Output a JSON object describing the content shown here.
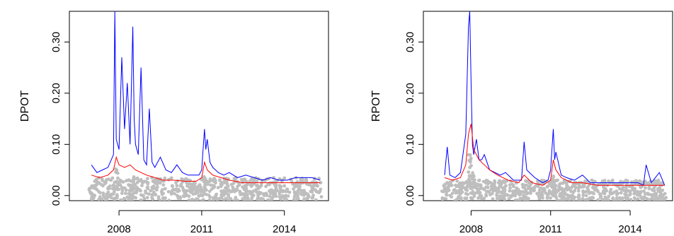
{
  "chart_data": [
    {
      "type": "line",
      "title": "",
      "xlabel": "",
      "ylabel": "DPOT",
      "x_tick_labels": [
        "2008",
        "2011",
        "2014"
      ],
      "x_ticks": [
        2008,
        2011,
        2014
      ],
      "xlim": [
        2006.2,
        2015.6
      ],
      "y_tick_labels": [
        "0.00",
        "0.10",
        "0.20",
        "0.30"
      ],
      "y_ticks": [
        0.0,
        0.1,
        0.2,
        0.3
      ],
      "ylim": [
        -0.01,
        0.36
      ],
      "grid": false,
      "series": [
        {
          "color": "#0000ff",
          "x": [
            2007.0,
            2007.2,
            2007.4,
            2007.6,
            2007.8,
            2007.85,
            2007.9,
            2008.0,
            2008.1,
            2008.2,
            2008.3,
            2008.4,
            2008.5,
            2008.55,
            2008.6,
            2008.7,
            2008.8,
            2008.9,
            2009.0,
            2009.1,
            2009.2,
            2009.3,
            2009.5,
            2009.7,
            2009.9,
            2010.1,
            2010.3,
            2010.5,
            2010.7,
            2010.9,
            2011.0,
            2011.1,
            2011.15,
            2011.2,
            2011.3,
            2011.4,
            2011.5,
            2011.6,
            2011.8,
            2012.0,
            2012.3,
            2012.6,
            2012.9,
            2013.2,
            2013.5,
            2013.8,
            2014.1,
            2014.4,
            2014.7,
            2015.0,
            2015.3
          ],
          "y": [
            0.06,
            0.045,
            0.05,
            0.055,
            0.08,
            0.36,
            0.11,
            0.09,
            0.27,
            0.13,
            0.22,
            0.1,
            0.33,
            0.15,
            0.1,
            0.08,
            0.25,
            0.07,
            0.06,
            0.17,
            0.065,
            0.055,
            0.075,
            0.05,
            0.045,
            0.06,
            0.045,
            0.04,
            0.04,
            0.04,
            0.05,
            0.13,
            0.09,
            0.11,
            0.065,
            0.055,
            0.05,
            0.045,
            0.04,
            0.045,
            0.035,
            0.04,
            0.035,
            0.03,
            0.035,
            0.03,
            0.03,
            0.035,
            0.035,
            0.035,
            0.03
          ]
        },
        {
          "color": "#ff0000",
          "x": [
            2007.0,
            2007.3,
            2007.6,
            2007.8,
            2007.9,
            2008.0,
            2008.2,
            2008.4,
            2008.6,
            2008.8,
            2009.0,
            2009.3,
            2009.6,
            2010.0,
            2010.4,
            2010.8,
            2011.0,
            2011.1,
            2011.2,
            2011.4,
            2011.7,
            2012.0,
            2012.5,
            2013.0,
            2013.5,
            2014.0,
            2014.5,
            2015.0,
            2015.3
          ],
          "y": [
            0.04,
            0.035,
            0.04,
            0.05,
            0.075,
            0.06,
            0.055,
            0.06,
            0.05,
            0.045,
            0.04,
            0.035,
            0.03,
            0.03,
            0.028,
            0.028,
            0.035,
            0.065,
            0.05,
            0.04,
            0.035,
            0.03,
            0.025,
            0.025,
            0.025,
            0.025,
            0.025,
            0.025,
            0.025
          ]
        }
      ],
      "scatter_series": [
        {
          "color": "#bebebe",
          "x_range": [
            2006.9,
            2015.35
          ],
          "y_range": [
            -0.01,
            0.035
          ],
          "spikes": [
            [
              2007.9,
              0.06
            ],
            [
              2008.5,
              0.04
            ],
            [
              2011.1,
              0.04
            ]
          ]
        }
      ]
    },
    {
      "type": "line",
      "title": "",
      "xlabel": "",
      "ylabel": "RPOT",
      "x_tick_labels": [
        "2008",
        "2011",
        "2014"
      ],
      "x_ticks": [
        2008,
        2011,
        2014
      ],
      "xlim": [
        2006.2,
        2015.6
      ],
      "y_tick_labels": [
        "0.00",
        "0.10",
        "0.20",
        "0.30"
      ],
      "y_ticks": [
        0.0,
        0.1,
        0.2,
        0.3
      ],
      "ylim": [
        -0.01,
        0.36
      ],
      "grid": false,
      "series": [
        {
          "color": "#0000ff",
          "x": [
            2007.0,
            2007.1,
            2007.2,
            2007.4,
            2007.6,
            2007.8,
            2007.9,
            2007.95,
            2008.0,
            2008.05,
            2008.1,
            2008.2,
            2008.3,
            2008.4,
            2008.5,
            2008.7,
            2008.9,
            2009.1,
            2009.3,
            2009.6,
            2009.9,
            2010.0,
            2010.1,
            2010.4,
            2010.7,
            2010.9,
            2011.0,
            2011.1,
            2011.15,
            2011.2,
            2011.4,
            2011.6,
            2011.9,
            2012.2,
            2012.5,
            2012.8,
            2013.2,
            2013.6,
            2014.0,
            2014.3,
            2014.5,
            2014.6,
            2014.8,
            2015.1,
            2015.3
          ],
          "y": [
            0.04,
            0.095,
            0.04,
            0.035,
            0.045,
            0.12,
            0.33,
            0.36,
            0.22,
            0.1,
            0.08,
            0.11,
            0.07,
            0.07,
            0.08,
            0.05,
            0.045,
            0.04,
            0.045,
            0.03,
            0.03,
            0.105,
            0.05,
            0.035,
            0.025,
            0.03,
            0.05,
            0.13,
            0.07,
            0.085,
            0.04,
            0.035,
            0.03,
            0.04,
            0.025,
            0.025,
            0.025,
            0.025,
            0.025,
            0.025,
            0.02,
            0.06,
            0.025,
            0.045,
            0.02
          ]
        },
        {
          "color": "#ff0000",
          "x": [
            2007.0,
            2007.3,
            2007.6,
            2007.8,
            2007.9,
            2008.0,
            2008.1,
            2008.3,
            2008.5,
            2008.7,
            2009.0,
            2009.4,
            2009.8,
            2010.0,
            2010.3,
            2010.7,
            2011.0,
            2011.1,
            2011.2,
            2011.4,
            2011.8,
            2012.2,
            2012.8,
            2013.4,
            2014.0,
            2014.6,
            2015.0,
            2015.3
          ],
          "y": [
            0.035,
            0.03,
            0.035,
            0.06,
            0.12,
            0.14,
            0.09,
            0.07,
            0.06,
            0.05,
            0.04,
            0.03,
            0.025,
            0.04,
            0.025,
            0.02,
            0.03,
            0.07,
            0.05,
            0.035,
            0.025,
            0.025,
            0.02,
            0.02,
            0.02,
            0.02,
            0.02,
            0.02
          ]
        }
      ],
      "scatter_series": [
        {
          "color": "#bebebe",
          "x_range": [
            2006.9,
            2015.35
          ],
          "y_range": [
            -0.01,
            0.03
          ],
          "spikes": [
            [
              2007.95,
              0.08
            ],
            [
              2008.1,
              0.05
            ],
            [
              2011.1,
              0.04
            ]
          ]
        }
      ]
    }
  ]
}
